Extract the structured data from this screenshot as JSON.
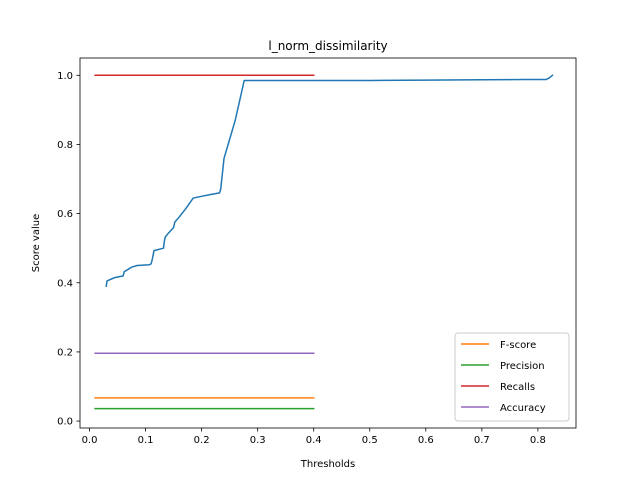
{
  "chart_data": {
    "type": "line",
    "title": "l_norm_dissimilarity",
    "xlabel": "Thresholds",
    "ylabel": "Score value",
    "xlim": [
      -0.017,
      0.868
    ],
    "ylim": [
      -0.02,
      1.05
    ],
    "xticks": [
      0.0,
      0.1,
      0.2,
      0.3,
      0.4,
      0.5,
      0.6,
      0.7,
      0.8
    ],
    "xtick_labels": [
      "0.0",
      "0.1",
      "0.2",
      "0.3",
      "0.4",
      "0.5",
      "0.6",
      "0.7",
      "0.8"
    ],
    "yticks": [
      0.0,
      0.2,
      0.4,
      0.6,
      0.8,
      1.0
    ],
    "ytick_labels": [
      "0.0",
      "0.2",
      "0.4",
      "0.6",
      "0.8",
      "1.0"
    ],
    "grid": false,
    "legend_position": "lower-right",
    "series": [
      {
        "name": "",
        "color": "#1f77b4",
        "x": [
          0.03,
          0.031,
          0.035,
          0.045,
          0.06,
          0.062,
          0.07,
          0.075,
          0.085,
          0.107,
          0.11,
          0.112,
          0.115,
          0.132,
          0.133,
          0.135,
          0.14,
          0.15,
          0.152,
          0.16,
          0.172,
          0.185,
          0.2,
          0.215,
          0.232,
          0.234,
          0.236,
          0.24,
          0.26,
          0.276,
          0.3,
          0.4,
          0.5,
          0.6,
          0.7,
          0.78,
          0.815,
          0.82,
          0.826
        ],
        "y": [
          0.39,
          0.405,
          0.408,
          0.415,
          0.42,
          0.432,
          0.44,
          0.445,
          0.45,
          0.452,
          0.455,
          0.468,
          0.493,
          0.5,
          0.515,
          0.532,
          0.542,
          0.56,
          0.575,
          0.59,
          0.615,
          0.645,
          0.65,
          0.655,
          0.66,
          0.67,
          0.7,
          0.76,
          0.87,
          0.985,
          0.985,
          0.985,
          0.985,
          0.986,
          0.987,
          0.988,
          0.988,
          0.992,
          1.0
        ]
      },
      {
        "name": "F-score",
        "color": "#ff7f0e",
        "x": [
          0.01,
          0.4
        ],
        "y": [
          0.067,
          0.067
        ]
      },
      {
        "name": "Precision",
        "color": "#2ca02c",
        "x": [
          0.01,
          0.4
        ],
        "y": [
          0.036,
          0.036
        ]
      },
      {
        "name": "Recalls",
        "color": "#d62728",
        "x": [
          0.01,
          0.4
        ],
        "y": [
          1.0,
          1.0
        ]
      },
      {
        "name": "Accuracy",
        "color": "#9467bd",
        "x": [
          0.01,
          0.4
        ],
        "y": [
          0.196,
          0.196
        ]
      }
    ]
  }
}
